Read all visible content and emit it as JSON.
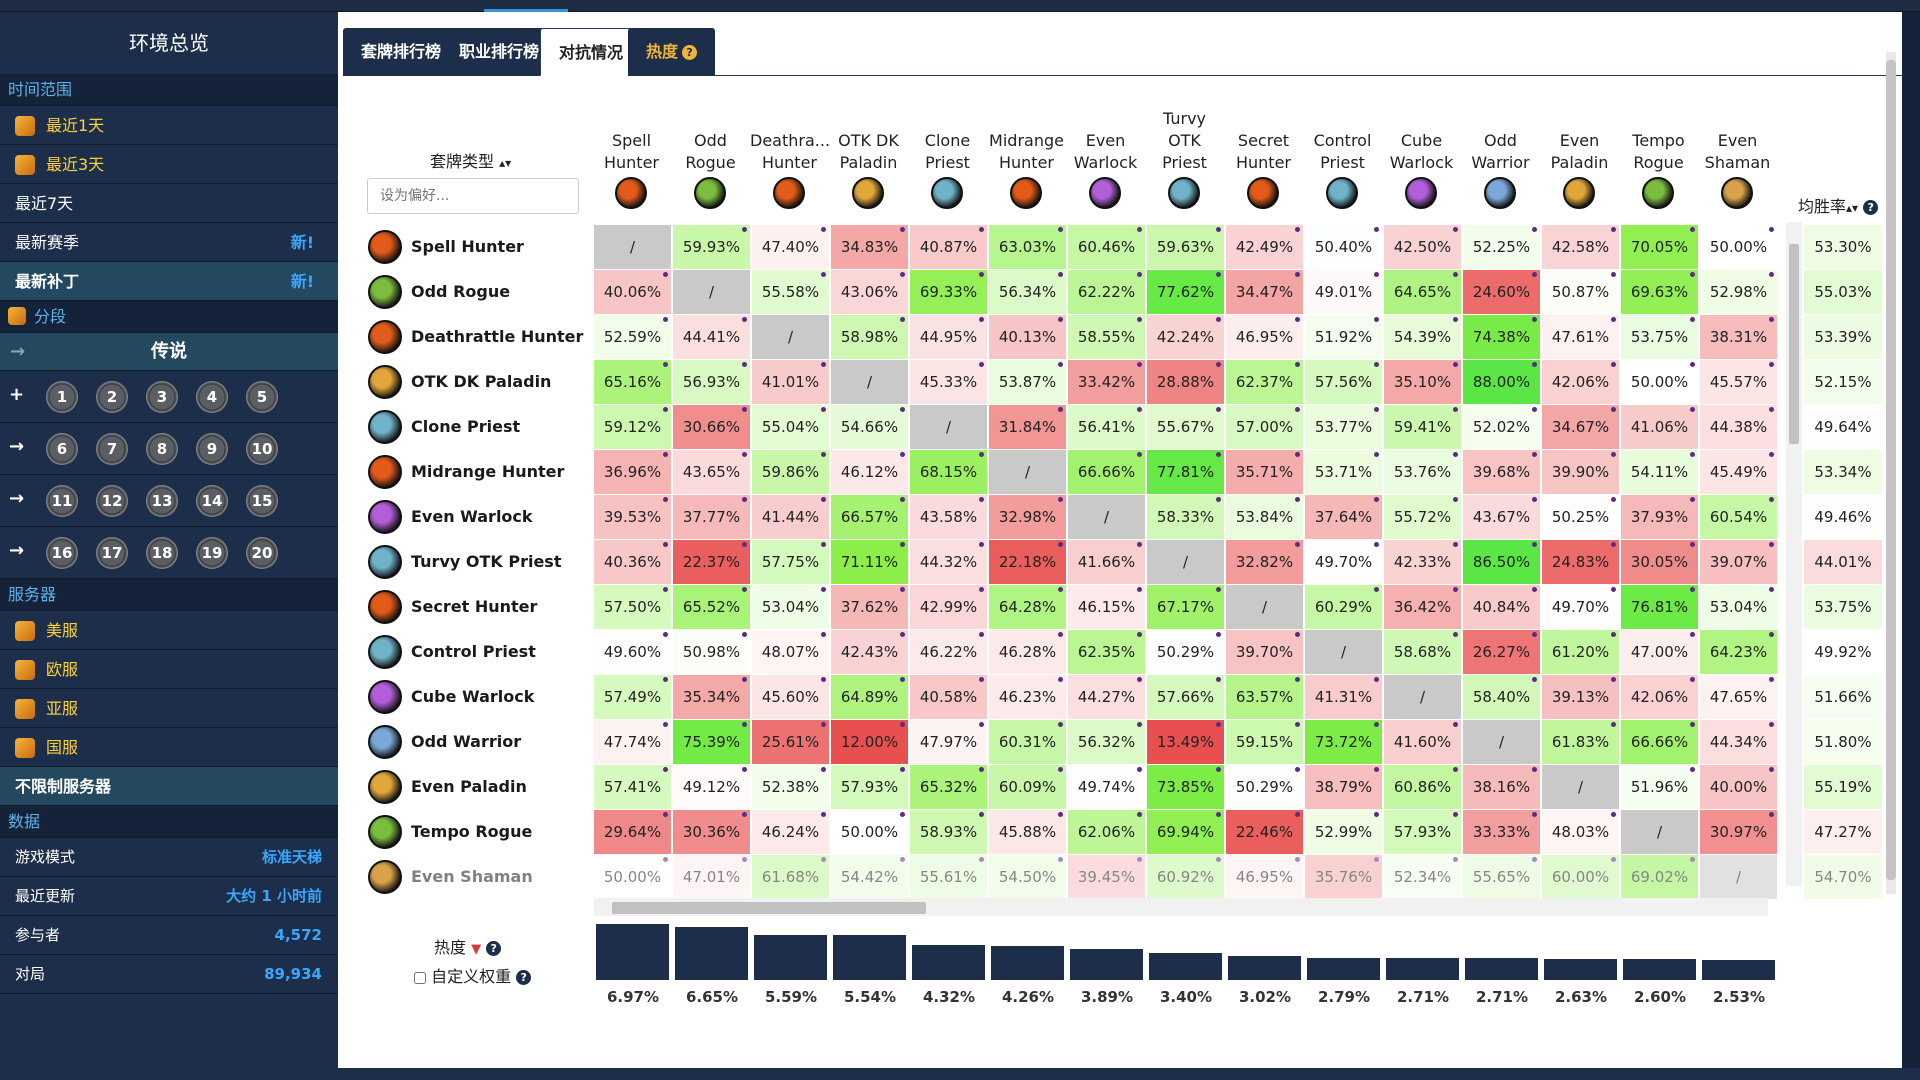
{
  "sidebar": {
    "title": "环境总览",
    "time_section": "时间范围",
    "time_items": [
      {
        "label": "最近1天",
        "icon": true,
        "highlight": true
      },
      {
        "label": "最近3天",
        "icon": true,
        "highlight": true
      },
      {
        "label": "最近7天",
        "icon": false
      },
      {
        "label": "最新赛季",
        "icon": false,
        "badge": "新!"
      },
      {
        "label": "最新补丁",
        "icon": false,
        "badge": "新!",
        "bold": true
      }
    ],
    "rank_section": "分段",
    "rank_selected": "传说",
    "rank_rows": [
      {
        "marker": "+",
        "ranks": [
          "1",
          "2",
          "3",
          "4",
          "5"
        ]
      },
      {
        "marker": "→",
        "ranks": [
          "6",
          "7",
          "8",
          "9",
          "10"
        ]
      },
      {
        "marker": "→",
        "ranks": [
          "11",
          "12",
          "13",
          "14",
          "15"
        ]
      },
      {
        "marker": "→",
        "ranks": [
          "16",
          "17",
          "18",
          "19",
          "20"
        ]
      }
    ],
    "server_section": "服务器",
    "servers": [
      "美服",
      "欧服",
      "亚服",
      "国服"
    ],
    "server_all": "不限制服务器",
    "data_section": "数据",
    "stats": [
      {
        "label": "游戏模式",
        "value": "标准天梯"
      },
      {
        "label": "最近更新",
        "value": "大约 1 小时前"
      },
      {
        "label": "参与者",
        "value": "4,572"
      },
      {
        "label": "对局",
        "value": "89,934"
      }
    ]
  },
  "tabs": [
    {
      "label": "套牌排行榜",
      "active": false
    },
    {
      "label": "职业排行榜",
      "active": false
    },
    {
      "label": "对抗情况",
      "active": true
    },
    {
      "label": "热度",
      "active": false,
      "hot": true,
      "help": "?"
    }
  ],
  "table": {
    "deck_type_header": "套牌类型",
    "sort_arrow": "▴▾",
    "filter_placeholder": "设为偏好...",
    "avg_header": "均胜率",
    "avg_help": "?",
    "columns": [
      {
        "name": "Spell\nHunter",
        "color": "#e25b1a"
      },
      {
        "name": "Odd\nRogue",
        "color": "#7bbd3e"
      },
      {
        "name": "Deathra...\nHunter",
        "color": "#e25b1a"
      },
      {
        "name": "OTK DK\nPaladin",
        "color": "#e0a63a"
      },
      {
        "name": "Clone\nPriest",
        "color": "#6fb3c8"
      },
      {
        "name": "Midrange\nHunter",
        "color": "#e25b1a"
      },
      {
        "name": "Even\nWarlock",
        "color": "#b15ed8"
      },
      {
        "name": "Turvy\nOTK\nPriest",
        "color": "#6fb3c8"
      },
      {
        "name": "Secret\nHunter",
        "color": "#e25b1a"
      },
      {
        "name": "Control\nPriest",
        "color": "#6fb3c8"
      },
      {
        "name": "Cube\nWarlock",
        "color": "#b15ed8"
      },
      {
        "name": "Odd\nWarrior",
        "color": "#7aa9d9"
      },
      {
        "name": "Even\nPaladin",
        "color": "#e0a63a"
      },
      {
        "name": "Tempo\nRogue",
        "color": "#7bbd3e"
      },
      {
        "name": "Even\nShaman",
        "color": "#d9a14a"
      }
    ],
    "rows": [
      {
        "name": "Spell Hunter",
        "color": "#e25b1a",
        "values": [
          "/",
          "59.93%",
          "47.40%",
          "34.83%",
          "40.87%",
          "63.03%",
          "60.46%",
          "59.63%",
          "42.49%",
          "50.40%",
          "42.50%",
          "52.25%",
          "42.58%",
          "70.05%",
          "50.00%"
        ],
        "avg": "53.30%"
      },
      {
        "name": "Odd Rogue",
        "color": "#7bbd3e",
        "values": [
          "40.06%",
          "/",
          "55.58%",
          "43.06%",
          "69.33%",
          "56.34%",
          "62.22%",
          "77.62%",
          "34.47%",
          "49.01%",
          "64.65%",
          "24.60%",
          "50.87%",
          "69.63%",
          "52.98%"
        ],
        "avg": "55.03%"
      },
      {
        "name": "Deathrattle Hunter",
        "color": "#e25b1a",
        "values": [
          "52.59%",
          "44.41%",
          "/",
          "58.98%",
          "44.95%",
          "40.13%",
          "58.55%",
          "42.24%",
          "46.95%",
          "51.92%",
          "54.39%",
          "74.38%",
          "47.61%",
          "53.75%",
          "38.31%"
        ],
        "avg": "53.39%"
      },
      {
        "name": "OTK DK Paladin",
        "color": "#e0a63a",
        "values": [
          "65.16%",
          "56.93%",
          "41.01%",
          "/",
          "45.33%",
          "53.87%",
          "33.42%",
          "28.88%",
          "62.37%",
          "57.56%",
          "35.10%",
          "88.00%",
          "42.06%",
          "50.00%",
          "45.57%"
        ],
        "avg": "52.15%"
      },
      {
        "name": "Clone Priest",
        "color": "#6fb3c8",
        "values": [
          "59.12%",
          "30.66%",
          "55.04%",
          "54.66%",
          "/",
          "31.84%",
          "56.41%",
          "55.67%",
          "57.00%",
          "53.77%",
          "59.41%",
          "52.02%",
          "34.67%",
          "41.06%",
          "44.38%"
        ],
        "avg": "49.64%"
      },
      {
        "name": "Midrange Hunter",
        "color": "#e25b1a",
        "values": [
          "36.96%",
          "43.65%",
          "59.86%",
          "46.12%",
          "68.15%",
          "/",
          "66.66%",
          "77.81%",
          "35.71%",
          "53.71%",
          "53.76%",
          "39.68%",
          "39.90%",
          "54.11%",
          "45.49%"
        ],
        "avg": "53.34%"
      },
      {
        "name": "Even Warlock",
        "color": "#b15ed8",
        "values": [
          "39.53%",
          "37.77%",
          "41.44%",
          "66.57%",
          "43.58%",
          "32.98%",
          "/",
          "58.33%",
          "53.84%",
          "37.64%",
          "55.72%",
          "43.67%",
          "50.25%",
          "37.93%",
          "60.54%"
        ],
        "avg": "49.46%"
      },
      {
        "name": "Turvy OTK Priest",
        "color": "#6fb3c8",
        "values": [
          "40.36%",
          "22.37%",
          "57.75%",
          "71.11%",
          "44.32%",
          "22.18%",
          "41.66%",
          "/",
          "32.82%",
          "49.70%",
          "42.33%",
          "86.50%",
          "24.83%",
          "30.05%",
          "39.07%"
        ],
        "avg": "44.01%"
      },
      {
        "name": "Secret Hunter",
        "color": "#e25b1a",
        "values": [
          "57.50%",
          "65.52%",
          "53.04%",
          "37.62%",
          "42.99%",
          "64.28%",
          "46.15%",
          "67.17%",
          "/",
          "60.29%",
          "36.42%",
          "40.84%",
          "49.70%",
          "76.81%",
          "53.04%"
        ],
        "avg": "53.75%"
      },
      {
        "name": "Control Priest",
        "color": "#6fb3c8",
        "values": [
          "49.60%",
          "50.98%",
          "48.07%",
          "42.43%",
          "46.22%",
          "46.28%",
          "62.35%",
          "50.29%",
          "39.70%",
          "/",
          "58.68%",
          "26.27%",
          "61.20%",
          "47.00%",
          "64.23%"
        ],
        "avg": "49.92%"
      },
      {
        "name": "Cube Warlock",
        "color": "#b15ed8",
        "values": [
          "57.49%",
          "35.34%",
          "45.60%",
          "64.89%",
          "40.58%",
          "46.23%",
          "44.27%",
          "57.66%",
          "63.57%",
          "41.31%",
          "/",
          "58.40%",
          "39.13%",
          "42.06%",
          "47.65%"
        ],
        "avg": "51.66%"
      },
      {
        "name": "Odd Warrior",
        "color": "#7aa9d9",
        "values": [
          "47.74%",
          "75.39%",
          "25.61%",
          "12.00%",
          "47.97%",
          "60.31%",
          "56.32%",
          "13.49%",
          "59.15%",
          "73.72%",
          "41.60%",
          "/",
          "61.83%",
          "66.66%",
          "44.34%"
        ],
        "avg": "51.80%"
      },
      {
        "name": "Even Paladin",
        "color": "#e0a63a",
        "values": [
          "57.41%",
          "49.12%",
          "52.38%",
          "57.93%",
          "65.32%",
          "60.09%",
          "49.74%",
          "73.85%",
          "50.29%",
          "38.79%",
          "60.86%",
          "38.16%",
          "/",
          "51.96%",
          "40.00%"
        ],
        "avg": "55.19%"
      },
      {
        "name": "Tempo Rogue",
        "color": "#7bbd3e",
        "values": [
          "29.64%",
          "30.36%",
          "46.24%",
          "50.00%",
          "58.93%",
          "45.88%",
          "62.06%",
          "69.94%",
          "22.46%",
          "52.99%",
          "57.93%",
          "33.33%",
          "48.03%",
          "/",
          "30.97%"
        ],
        "avg": "47.27%"
      },
      {
        "name": "Even Shaman",
        "color": "#d9a14a",
        "values": [
          "50.00%",
          "47.01%",
          "61.68%",
          "54.42%",
          "55.61%",
          "54.50%",
          "39.45%",
          "60.92%",
          "46.95%",
          "35.76%",
          "52.34%",
          "55.65%",
          "60.00%",
          "69.02%",
          "/"
        ],
        "avg": "54.70%"
      }
    ]
  },
  "popularity": {
    "label": "热度",
    "arrow": "▼",
    "help": "?",
    "custom_weight": "自定义权重",
    "values": [
      6.97,
      6.65,
      5.59,
      5.54,
      4.32,
      4.26,
      3.89,
      3.4,
      3.02,
      2.79,
      2.71,
      2.71,
      2.63,
      2.6,
      2.53
    ],
    "labels": [
      "6.97%",
      "6.65%",
      "5.59%",
      "5.54%",
      "4.32%",
      "4.26%",
      "3.89%",
      "3.40%",
      "3.02%",
      "2.79%",
      "2.71%",
      "2.71%",
      "2.63%",
      "2.60%",
      "2.53%"
    ]
  }
}
